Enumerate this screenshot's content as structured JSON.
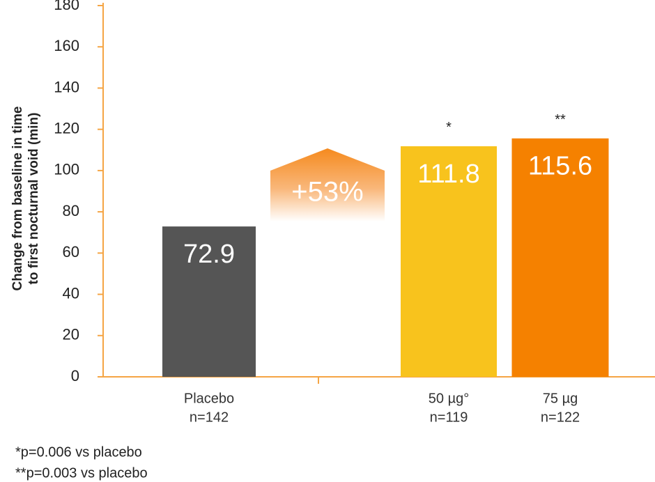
{
  "chart_data": {
    "type": "bar",
    "ylabel": [
      "Change from baseline in time",
      "to first nocturnal void (min)"
    ],
    "categories": [
      "Placebo",
      "50 µg°",
      "75 µg"
    ],
    "sample_sizes": [
      "n=142",
      "n=119",
      "n=122"
    ],
    "values": [
      72.9,
      111.8,
      115.6
    ],
    "colors": [
      "#555555",
      "#f8c31d",
      "#f58100"
    ],
    "significance": [
      null,
      "*",
      "**"
    ],
    "increase_label": "+53%",
    "ylim": [
      0,
      180
    ],
    "yticks": [
      0,
      20,
      40,
      60,
      80,
      100,
      120,
      140,
      160,
      180
    ],
    "axis_color": "#f5a544",
    "footnotes": [
      "*p=0.006 vs placebo",
      "**p=0.003 vs placebo"
    ]
  }
}
